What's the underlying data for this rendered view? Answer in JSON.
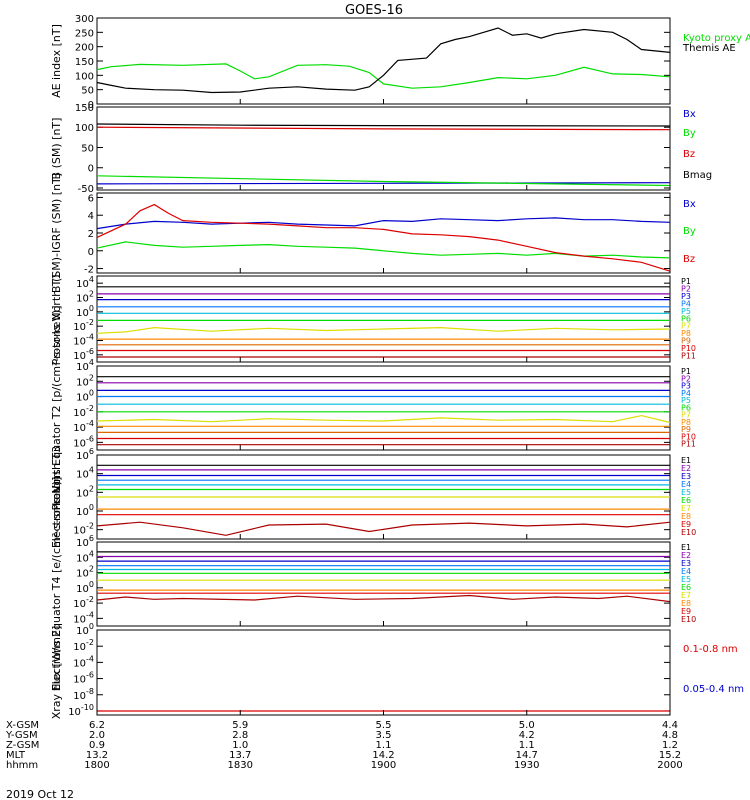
{
  "title": "GOES-16",
  "date": "2019 Oct 12",
  "x_axis": {
    "ticks": [
      "1800",
      "1830",
      "1900",
      "1930",
      "2000"
    ],
    "rows": [
      {
        "label": "X-GSM",
        "values": [
          "6.2",
          "5.9",
          "5.5",
          "5.0",
          "4.4"
        ]
      },
      {
        "label": "Y-GSM",
        "values": [
          "2.0",
          "2.8",
          "3.5",
          "4.2",
          "4.8"
        ]
      },
      {
        "label": "Z-GSM",
        "values": [
          "0.9",
          "1.0",
          "1.1",
          "1.1",
          "1.2"
        ]
      },
      {
        "label": "MLT",
        "values": [
          "13.2",
          "13.7",
          "14.2",
          "14.7",
          "15.2"
        ]
      },
      {
        "label": "hhmm",
        "values": [
          "1800",
          "1830",
          "1900",
          "1930",
          "2000"
        ]
      }
    ]
  },
  "colors": {
    "black": "#000000",
    "green": "#00dd00",
    "blue": "#0000cc",
    "red": "#dd0000",
    "purple": "#8800aa",
    "cyan": "#00bbdd",
    "yellow": "#dddd00",
    "orange": "#ff8800",
    "darkred": "#aa0000",
    "teal": "#00bb88"
  },
  "chart_data": [
    {
      "type": "line",
      "ylabel": "AE index [nT]",
      "ylim": [
        0,
        300
      ],
      "ytick_labels": [
        "0",
        "50",
        "100",
        "150",
        "200",
        "250",
        "300"
      ],
      "series": [
        {
          "name": "Kyoto proxy AE",
          "color": "#00dd00",
          "x": [
            0,
            5,
            15,
            30,
            45,
            50,
            55,
            60,
            70,
            80,
            88,
            95,
            100,
            110,
            120,
            130,
            140,
            150,
            160,
            170,
            180,
            190,
            200
          ],
          "y": [
            120,
            130,
            138,
            135,
            140,
            115,
            88,
            95,
            135,
            137,
            132,
            110,
            70,
            55,
            60,
            75,
            92,
            88,
            100,
            128,
            105,
            103,
            95
          ]
        },
        {
          "name": "Themis AE",
          "color": "#000000",
          "x": [
            0,
            5,
            10,
            20,
            30,
            40,
            50,
            60,
            70,
            80,
            90,
            95,
            100,
            105,
            115,
            120,
            125,
            130,
            140,
            145,
            150,
            155,
            160,
            170,
            180,
            185,
            190,
            200
          ],
          "y": [
            75,
            65,
            55,
            50,
            48,
            40,
            42,
            55,
            60,
            52,
            48,
            60,
            100,
            152,
            160,
            210,
            225,
            235,
            265,
            240,
            245,
            230,
            245,
            260,
            250,
            225,
            190,
            180
          ]
        }
      ]
    },
    {
      "type": "line",
      "ylabel": "B (SM) [nT]",
      "ylim": [
        -55,
        150
      ],
      "ytick_labels": [
        "-50",
        "0",
        "50",
        "100",
        "150"
      ],
      "series": [
        {
          "name": "Bx",
          "color": "#0000cc",
          "x": [
            0,
            200
          ],
          "y": [
            -40,
            -37
          ]
        },
        {
          "name": "By",
          "color": "#00dd00",
          "x": [
            0,
            100,
            200
          ],
          "y": [
            -20,
            -34,
            -44
          ]
        },
        {
          "name": "Bz",
          "color": "#dd0000",
          "x": [
            0,
            100,
            200
          ],
          "y": [
            100,
            96,
            94
          ]
        },
        {
          "name": "Bmag",
          "color": "#000000",
          "x": [
            0,
            50,
            100,
            200
          ],
          "y": [
            108,
            105,
            104,
            103
          ]
        }
      ]
    },
    {
      "type": "line",
      "ylabel": "B (SM)-IGRF (SM) [nT]",
      "ylim": [
        -2.5,
        6.5
      ],
      "ytick_labels": [
        "-2",
        "0",
        "2",
        "4",
        "6"
      ],
      "series": [
        {
          "name": "Bx",
          "color": "#0000cc",
          "x": [
            0,
            10,
            20,
            30,
            40,
            50,
            60,
            70,
            80,
            90,
            100,
            110,
            120,
            130,
            140,
            150,
            160,
            170,
            180,
            190,
            200
          ],
          "y": [
            2.5,
            3.0,
            3.3,
            3.2,
            3.0,
            3.1,
            3.2,
            3.0,
            2.9,
            2.8,
            3.4,
            3.3,
            3.6,
            3.5,
            3.4,
            3.6,
            3.7,
            3.5,
            3.5,
            3.3,
            3.2
          ]
        },
        {
          "name": "By",
          "color": "#00dd00",
          "x": [
            0,
            10,
            20,
            30,
            40,
            50,
            60,
            70,
            80,
            90,
            100,
            110,
            120,
            130,
            140,
            150,
            160,
            170,
            180,
            190,
            200
          ],
          "y": [
            0.3,
            1.0,
            0.6,
            0.4,
            0.5,
            0.6,
            0.7,
            0.5,
            0.4,
            0.3,
            0.0,
            -0.3,
            -0.5,
            -0.4,
            -0.3,
            -0.5,
            -0.3,
            -0.6,
            -0.5,
            -0.7,
            -0.8
          ]
        },
        {
          "name": "Bz",
          "color": "#dd0000",
          "x": [
            0,
            10,
            15,
            20,
            25,
            30,
            40,
            50,
            60,
            70,
            80,
            90,
            100,
            110,
            120,
            130,
            140,
            150,
            160,
            170,
            180,
            190,
            200
          ],
          "y": [
            1.5,
            3.0,
            4.5,
            5.2,
            4.2,
            3.4,
            3.2,
            3.1,
            3.0,
            2.8,
            2.6,
            2.6,
            2.4,
            1.9,
            1.8,
            1.6,
            1.2,
            0.5,
            -0.2,
            -0.6,
            -0.9,
            -1.3,
            -2.3
          ]
        }
      ]
    },
    {
      "type": "line",
      "ylabel": "Protons North T1",
      "yscale": "log",
      "ylim_exp": [
        -7,
        5
      ],
      "ytick_labels": [
        "10^-6",
        "10^-4",
        "10^-2",
        "10^0",
        "10^2",
        "10^4"
      ],
      "series": [
        {
          "name": "P1",
          "color": "#000000",
          "x": [
            0,
            200
          ],
          "y": [
            3.5,
            3.5
          ]
        },
        {
          "name": "P2",
          "color": "#8800aa",
          "x": [
            0,
            200
          ],
          "y": [
            2.5,
            2.5
          ]
        },
        {
          "name": "P3",
          "color": "#0000cc",
          "x": [
            0,
            200
          ],
          "y": [
            1.7,
            1.7
          ]
        },
        {
          "name": "P4",
          "color": "#0077ff",
          "x": [
            0,
            200
          ],
          "y": [
            0.7,
            0.7
          ]
        },
        {
          "name": "P5",
          "color": "#00bbdd",
          "x": [
            0,
            200
          ],
          "y": [
            -0.2,
            -0.2
          ]
        },
        {
          "name": "P6",
          "color": "#00dd00",
          "x": [
            0,
            200
          ],
          "y": [
            -1.2,
            -1.2
          ]
        },
        {
          "name": "P7",
          "color": "#dddd00",
          "x": [
            0,
            10,
            20,
            40,
            60,
            80,
            100,
            120,
            140,
            160,
            180,
            200
          ],
          "y": [
            -3.0,
            -2.8,
            -2.2,
            -2.7,
            -2.3,
            -2.6,
            -2.4,
            -2.2,
            -2.7,
            -2.3,
            -2.5,
            -2.4
          ]
        },
        {
          "name": "P8",
          "color": "#ff8800",
          "x": [
            0,
            200
          ],
          "y": [
            -3.8,
            -3.8
          ]
        },
        {
          "name": "P9",
          "color": "#dd6600",
          "x": [
            0,
            200
          ],
          "y": [
            -4.6,
            -4.6
          ]
        },
        {
          "name": "P10",
          "color": "#dd0000",
          "x": [
            0,
            200
          ],
          "y": [
            -5.4,
            -5.4
          ]
        },
        {
          "name": "P11",
          "color": "#aa0000",
          "x": [
            0,
            200
          ],
          "y": [
            -6.3,
            -6.3
          ]
        }
      ]
    },
    {
      "type": "line",
      "ylabel": "Protons Equator T2 [p/(cm²-s-sr-keV)]",
      "yscale": "log",
      "ylim_exp": [
        -7,
        4
      ],
      "ytick_labels": [
        "10^-6",
        "10^-4",
        "10^-2",
        "10^0",
        "10^2",
        "10^4"
      ],
      "series": [
        {
          "name": "P1",
          "color": "#000000",
          "x": [
            0,
            200
          ],
          "y": [
            2.6,
            2.6
          ]
        },
        {
          "name": "P2",
          "color": "#8800aa",
          "x": [
            0,
            200
          ],
          "y": [
            1.8,
            1.8
          ]
        },
        {
          "name": "P3",
          "color": "#0000cc",
          "x": [
            0,
            200
          ],
          "y": [
            0.8,
            0.8
          ]
        },
        {
          "name": "P4",
          "color": "#0077ff",
          "x": [
            0,
            200
          ],
          "y": [
            0.0,
            0.0
          ]
        },
        {
          "name": "P5",
          "color": "#00bbdd",
          "x": [
            0,
            200
          ],
          "y": [
            -1.0,
            -1.0
          ]
        },
        {
          "name": "P6",
          "color": "#00dd00",
          "x": [
            0,
            200
          ],
          "y": [
            -2.0,
            -2.0
          ]
        },
        {
          "name": "P7",
          "color": "#dddd00",
          "x": [
            0,
            20,
            40,
            60,
            80,
            100,
            120,
            140,
            160,
            180,
            190,
            200
          ],
          "y": [
            -3.2,
            -3.0,
            -3.3,
            -2.9,
            -3.1,
            -3.2,
            -2.8,
            -3.1,
            -3.0,
            -3.3,
            -2.5,
            -3.4
          ]
        },
        {
          "name": "P8",
          "color": "#ff8800",
          "x": [
            0,
            200
          ],
          "y": [
            -3.9,
            -3.9
          ]
        },
        {
          "name": "P9",
          "color": "#dd6600",
          "x": [
            0,
            200
          ],
          "y": [
            -4.7,
            -4.7
          ]
        },
        {
          "name": "P10",
          "color": "#dd0000",
          "x": [
            0,
            200
          ],
          "y": [
            -5.5,
            -5.5
          ]
        },
        {
          "name": "P11",
          "color": "#aa0000",
          "x": [
            0,
            200
          ],
          "y": [
            -6.3,
            -6.3
          ]
        }
      ]
    },
    {
      "type": "line",
      "ylabel": "Electrons North T3",
      "yscale": "log",
      "ylim_exp": [
        -3,
        6
      ],
      "ytick_labels": [
        "10^-2",
        "10^0",
        "10^2",
        "10^4",
        "10^6"
      ],
      "series": [
        {
          "name": "E1",
          "color": "#000000",
          "x": [
            0,
            200
          ],
          "y": [
            4.9,
            4.9
          ]
        },
        {
          "name": "E2",
          "color": "#8800aa",
          "x": [
            0,
            200
          ],
          "y": [
            4.4,
            4.4
          ]
        },
        {
          "name": "E3",
          "color": "#0000cc",
          "x": [
            0,
            200
          ],
          "y": [
            3.8,
            3.8
          ]
        },
        {
          "name": "E4",
          "color": "#0077ff",
          "x": [
            0,
            200
          ],
          "y": [
            3.3,
            3.3
          ]
        },
        {
          "name": "E5",
          "color": "#00bbdd",
          "x": [
            0,
            200
          ],
          "y": [
            2.8,
            2.8
          ]
        },
        {
          "name": "E6",
          "color": "#00dd00",
          "x": [
            0,
            200
          ],
          "y": [
            2.3,
            2.3
          ]
        },
        {
          "name": "E7",
          "color": "#dddd00",
          "x": [
            0,
            200
          ],
          "y": [
            1.5,
            1.5
          ]
        },
        {
          "name": "E8",
          "color": "#ff8800",
          "x": [
            0,
            200
          ],
          "y": [
            0.2,
            0.2
          ]
        },
        {
          "name": "E9",
          "color": "#dd0000",
          "x": [
            0,
            200
          ],
          "y": [
            -0.4,
            -0.4
          ]
        },
        {
          "name": "E10",
          "color": "#aa0000",
          "x": [
            0,
            15,
            30,
            45,
            60,
            80,
            95,
            110,
            130,
            150,
            170,
            185,
            200
          ],
          "y": [
            -1.6,
            -1.2,
            -1.8,
            -2.6,
            -1.5,
            -1.4,
            -2.2,
            -1.5,
            -1.3,
            -1.6,
            -1.4,
            -1.7,
            -1.2
          ]
        }
      ]
    },
    {
      "type": "line",
      "ylabel": "Electrons Equator T4 [e/(cm²-s-sr-keV)]",
      "yscale": "log",
      "ylim_exp": [
        -5,
        6
      ],
      "ytick_labels": [
        "10^-4",
        "10^-2",
        "10^0",
        "10^2",
        "10^4",
        "10^6"
      ],
      "series": [
        {
          "name": "E1",
          "color": "#000000",
          "x": [
            0,
            200
          ],
          "y": [
            4.7,
            4.7
          ]
        },
        {
          "name": "E2",
          "color": "#8800aa",
          "x": [
            0,
            200
          ],
          "y": [
            4.1,
            4.1
          ]
        },
        {
          "name": "E3",
          "color": "#0000cc",
          "x": [
            0,
            200
          ],
          "y": [
            3.5,
            3.5
          ]
        },
        {
          "name": "E4",
          "color": "#0077ff",
          "x": [
            0,
            200
          ],
          "y": [
            2.9,
            2.9
          ]
        },
        {
          "name": "E5",
          "color": "#00bbdd",
          "x": [
            0,
            200
          ],
          "y": [
            2.4,
            2.4
          ]
        },
        {
          "name": "E6",
          "color": "#00dd00",
          "x": [
            0,
            200
          ],
          "y": [
            1.9,
            1.9
          ]
        },
        {
          "name": "E7",
          "color": "#dddd00",
          "x": [
            0,
            200
          ],
          "y": [
            1.0,
            1.0
          ]
        },
        {
          "name": "E8",
          "color": "#ff8800",
          "x": [
            0,
            200
          ],
          "y": [
            -0.3,
            -0.3
          ]
        },
        {
          "name": "E9",
          "color": "#dd0000",
          "x": [
            0,
            200
          ],
          "y": [
            -0.7,
            -0.7
          ]
        },
        {
          "name": "E10",
          "color": "#aa0000",
          "x": [
            0,
            10,
            20,
            30,
            55,
            70,
            90,
            110,
            130,
            145,
            160,
            175,
            185,
            200
          ],
          "y": [
            -1.6,
            -1.2,
            -1.5,
            -1.4,
            -1.6,
            -1.1,
            -1.5,
            -1.4,
            -1.0,
            -1.5,
            -1.2,
            -1.4,
            -1.1,
            -1.8
          ]
        }
      ]
    },
    {
      "type": "line",
      "ylabel": "Xray flux [W/m2]",
      "yscale": "log",
      "ylim_exp": [
        -10.5,
        0
      ],
      "ytick_labels": [
        "10^-10",
        "10^-8",
        "10^-6",
        "10^-4",
        "10^-2",
        "10^0"
      ],
      "series": [
        {
          "name": "0.1-0.8 nm",
          "color": "#dd0000",
          "x": [
            0,
            200
          ],
          "y": [
            -10,
            -10
          ]
        },
        {
          "name": "0.05-0.4 nm",
          "color": "#0000cc",
          "x": [],
          "y": []
        }
      ]
    }
  ]
}
